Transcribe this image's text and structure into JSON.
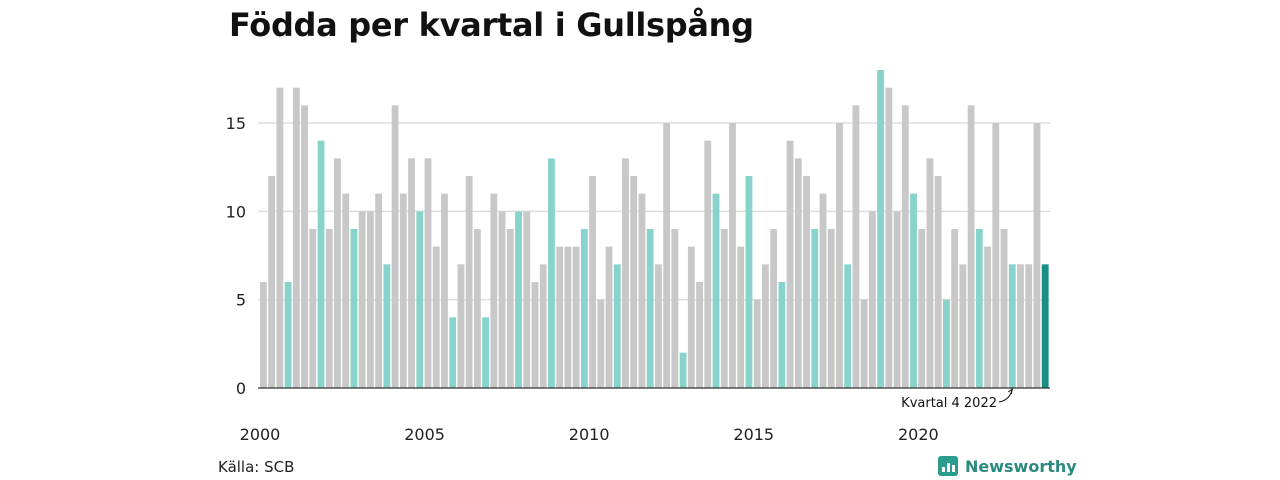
{
  "title": "Födda per kvartal i Gullspång",
  "source": "Källa: SCB",
  "brand": "Newsworthy",
  "annotation": "Kvartal 4 2022",
  "colors": {
    "default": "#c8c8c8",
    "q4": "#88d4cc",
    "last": "#178f84",
    "grid": "#dddddd",
    "axis": "#333333",
    "brand": "#2a9d8f"
  },
  "chart_data": {
    "type": "bar",
    "title": "Födda per kvartal i Gullspång",
    "xlabel": "",
    "ylabel": "",
    "ylim": [
      0,
      18
    ],
    "yticks": [
      0,
      5,
      10,
      15
    ],
    "xtick_years": [
      "2000",
      "2005",
      "2010",
      "2015",
      "2020"
    ],
    "highlighted_quarter": "Q4",
    "annotation_target": "2022 Q4",
    "categories": [
      "2000 Q1",
      "2000 Q2",
      "2000 Q3",
      "2000 Q4",
      "2001 Q1",
      "2001 Q2",
      "2001 Q3",
      "2001 Q4",
      "2002 Q1",
      "2002 Q2",
      "2002 Q3",
      "2002 Q4",
      "2003 Q1",
      "2003 Q2",
      "2003 Q3",
      "2003 Q4",
      "2004 Q1",
      "2004 Q2",
      "2004 Q3",
      "2004 Q4",
      "2005 Q1",
      "2005 Q2",
      "2005 Q3",
      "2005 Q4",
      "2006 Q1",
      "2006 Q2",
      "2006 Q3",
      "2006 Q4",
      "2007 Q1",
      "2007 Q2",
      "2007 Q3",
      "2007 Q4",
      "2008 Q1",
      "2008 Q2",
      "2008 Q3",
      "2008 Q4",
      "2009 Q1",
      "2009 Q2",
      "2009 Q3",
      "2009 Q4",
      "2010 Q1",
      "2010 Q2",
      "2010 Q3",
      "2010 Q4",
      "2011 Q1",
      "2011 Q2",
      "2011 Q3",
      "2011 Q4",
      "2012 Q1",
      "2012 Q2",
      "2012 Q3",
      "2012 Q4",
      "2013 Q1",
      "2013 Q2",
      "2013 Q3",
      "2013 Q4",
      "2014 Q1",
      "2014 Q2",
      "2014 Q3",
      "2014 Q4",
      "2015 Q1",
      "2015 Q2",
      "2015 Q3",
      "2015 Q4",
      "2016 Q1",
      "2016 Q2",
      "2016 Q3",
      "2016 Q4",
      "2017 Q1",
      "2017 Q2",
      "2017 Q3",
      "2017 Q4",
      "2018 Q1",
      "2018 Q2",
      "2018 Q3",
      "2018 Q4",
      "2019 Q1",
      "2019 Q2",
      "2019 Q3",
      "2019 Q4",
      "2020 Q1",
      "2020 Q2",
      "2020 Q3",
      "2020 Q4",
      "2021 Q1",
      "2021 Q2",
      "2021 Q3",
      "2021 Q4",
      "2022 Q1",
      "2022 Q2",
      "2022 Q3",
      "2022 Q4",
      "2023 Q1",
      "2023 Q2",
      "2023 Q3",
      "2023 Q4"
    ],
    "values": [
      6,
      12,
      17,
      6,
      17,
      16,
      9,
      14,
      9,
      13,
      11,
      9,
      10,
      10,
      11,
      7,
      16,
      11,
      13,
      10,
      13,
      8,
      11,
      4,
      7,
      12,
      9,
      4,
      11,
      10,
      9,
      10,
      10,
      6,
      7,
      13,
      8,
      8,
      8,
      9,
      12,
      5,
      8,
      7,
      13,
      12,
      11,
      9,
      7,
      15,
      9,
      2,
      8,
      6,
      14,
      11,
      9,
      15,
      8,
      12,
      5,
      7,
      9,
      6,
      14,
      13,
      12,
      9,
      11,
      9,
      15,
      7,
      16,
      5,
      10,
      18,
      17,
      10,
      16,
      11,
      9,
      13,
      12,
      5,
      9,
      7,
      16,
      9,
      8,
      15,
      9,
      7,
      7,
      7,
      15,
      7
    ]
  }
}
